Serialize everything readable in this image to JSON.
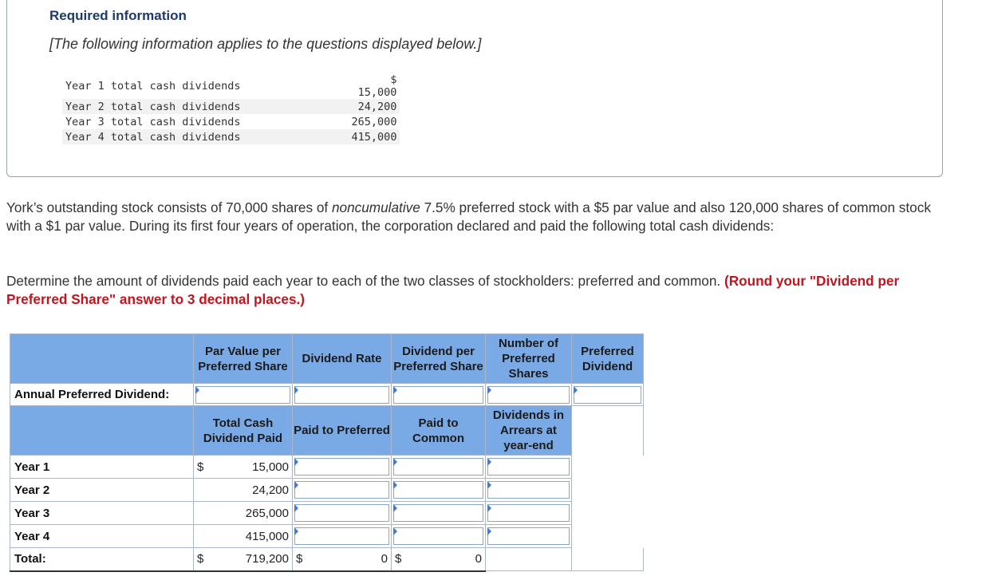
{
  "header": {
    "title": "Required information",
    "subtitle": "[The following information applies to the questions displayed below.]"
  },
  "dividends_list": [
    {
      "label": "Year 1 total cash dividends",
      "amount": "$ 15,000"
    },
    {
      "label": "Year 2 total cash dividends",
      "amount": "24,200"
    },
    {
      "label": "Year 3 total cash dividends",
      "amount": "265,000"
    },
    {
      "label": "Year 4 total cash dividends",
      "amount": "415,000"
    }
  ],
  "problem": {
    "p1_a": "York’s outstanding stock consists of 70,000 shares of ",
    "p1_italic": "noncumulative",
    "p1_b": " 7.5% preferred stock with a $5 par value and also 120,000 shares of common stock with a $1 par value. During its first four years of operation, the corporation declared and paid the following total cash dividends:",
    "p2": "Determine the amount of dividends paid each year to each of the two classes of stockholders: preferred and common. ",
    "p2_red": "(Round your \"Dividend per Preferred Share\" answer to 3 decimal places.)"
  },
  "pref_table": {
    "headers": [
      "Par Value per Preferred Share",
      "Dividend Rate",
      "Dividend per Preferred Share",
      "Number of Preferred Shares",
      "Preferred Dividend"
    ],
    "row_label": "Annual Preferred Dividend:"
  },
  "year_table": {
    "headers": [
      "Total Cash Dividend Paid",
      "Paid to Preferred",
      "Paid to Common",
      "Dividends in Arrears at year-end"
    ],
    "rows": [
      {
        "label": "Year 1",
        "dollar": "$",
        "total": "15,000"
      },
      {
        "label": "Year 2",
        "dollar": "",
        "total": "24,200"
      },
      {
        "label": "Year 3",
        "dollar": "",
        "total": "265,000"
      },
      {
        "label": "Year 4",
        "dollar": "",
        "total": "415,000"
      }
    ],
    "total_row": {
      "label": "Total:",
      "dollar": "$",
      "total": "719,200",
      "pref_dollar": "$",
      "pref": "0",
      "common_dollar": "$",
      "common": "0"
    }
  }
}
